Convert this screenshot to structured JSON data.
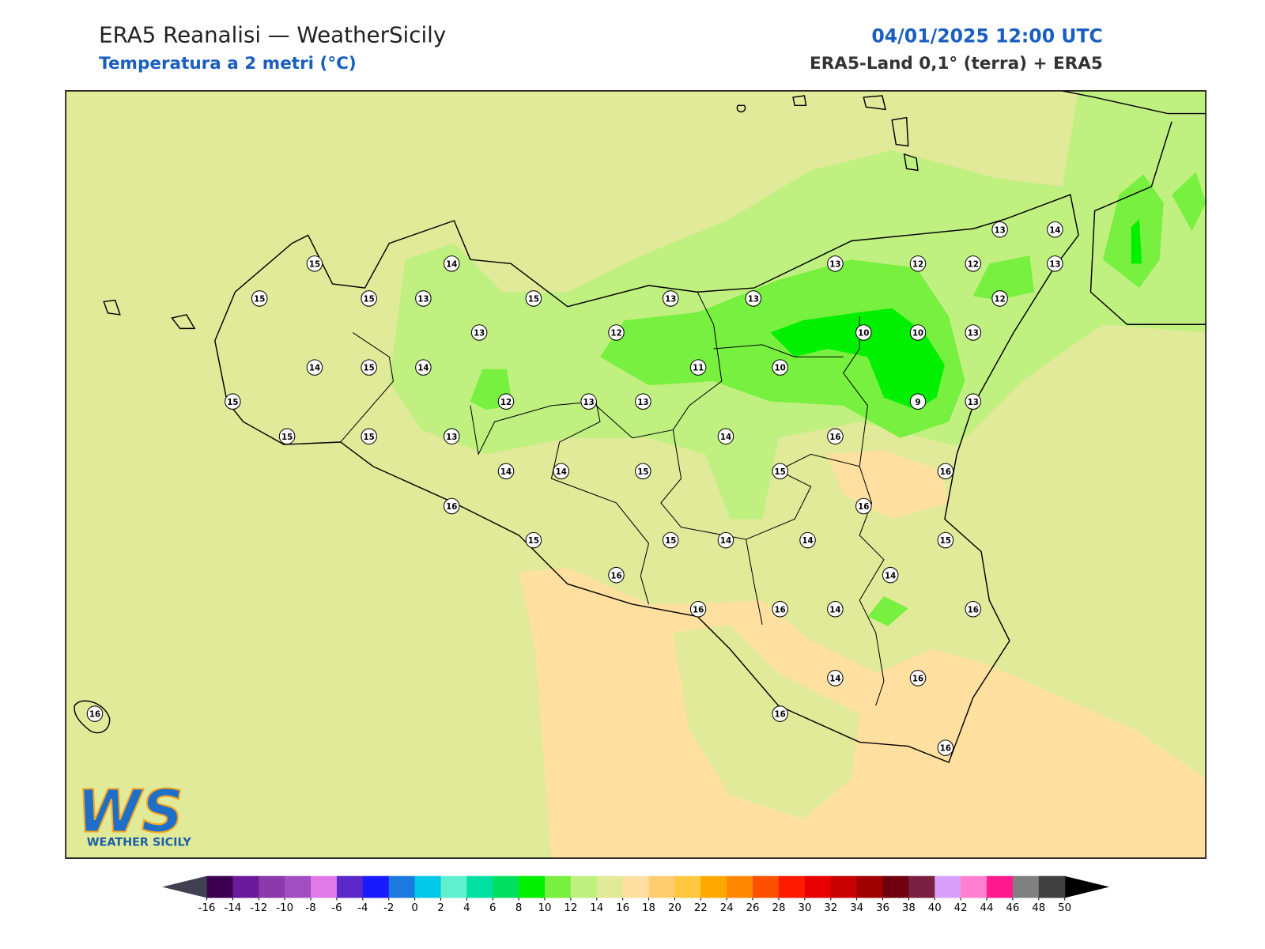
{
  "header": {
    "title": "ERA5 Reanalisi — WeatherSicily",
    "subtitle": "Temperatura a 2 metri (°C)",
    "datetime": "04/01/2025 12:00 UTC",
    "source": "ERA5-Land 0,1° (terra) + ERA5"
  },
  "stations": {
    "values": [
      15,
      14,
      15,
      15,
      13,
      15,
      13,
      13,
      13,
      12,
      12,
      13,
      14,
      13,
      12,
      13,
      12,
      10,
      10,
      13,
      14,
      15,
      14,
      11,
      10,
      15,
      12,
      13,
      13,
      9,
      13,
      15,
      15,
      13,
      14,
      16,
      14,
      14,
      15,
      15,
      16,
      16,
      16,
      15,
      15,
      14,
      14,
      15,
      16,
      14,
      16,
      16,
      14,
      16,
      14,
      16,
      16,
      16,
      16
    ]
  },
  "colorbar": {
    "ticks": [
      -16,
      -14,
      -12,
      -10,
      -8,
      -6,
      -4,
      -2,
      0,
      2,
      4,
      6,
      8,
      10,
      12,
      14,
      16,
      18,
      20,
      22,
      24,
      26,
      28,
      30,
      32,
      34,
      36,
      38,
      40,
      42,
      44,
      46,
      48,
      50
    ],
    "colors": [
      "#3d0050",
      "#6a1a9a",
      "#8a3aaa",
      "#a04ec0",
      "#e07ae8",
      "#5a28c8",
      "#1a1aff",
      "#1a7ae0",
      "#00c8e6",
      "#5ff0d0",
      "#00e0a0",
      "#00e060",
      "#00f000",
      "#78f040",
      "#c0f080",
      "#e0ea98",
      "#ffe0a0",
      "#ffcc70",
      "#ffc840",
      "#ffa800",
      "#ff8800",
      "#ff5000",
      "#ff1a00",
      "#e60000",
      "#c80000",
      "#a00000",
      "#700010",
      "#7a2040",
      "#d8a0f8",
      "#ff80d0",
      "#ff1a90",
      "#808080",
      "#404040"
    ],
    "under_color": "#404050",
    "over_color": "#000000"
  },
  "logo": {
    "mark": "WS",
    "text": "WEATHER SICILY"
  }
}
